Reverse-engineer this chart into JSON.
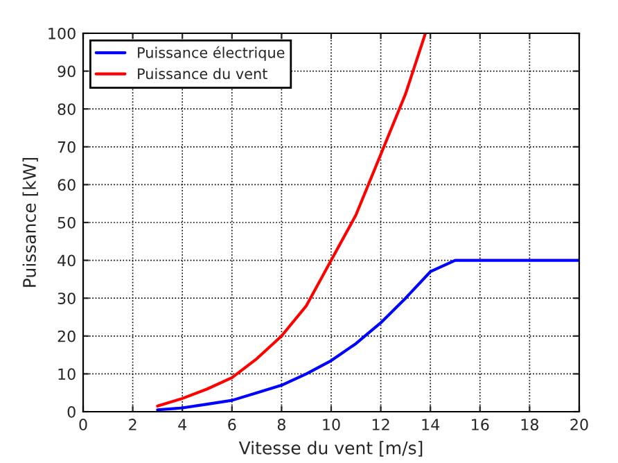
{
  "chart_data": {
    "type": "line",
    "xlabel": "Vitesse du vent [m/s]",
    "ylabel": "Puissance [kW]",
    "xlim": [
      0,
      20
    ],
    "xticks": [
      0,
      2,
      4,
      6,
      8,
      10,
      12,
      14,
      16,
      18,
      20
    ],
    "ylim": [
      0,
      100
    ],
    "yticks": [
      0,
      10,
      20,
      30,
      40,
      50,
      60,
      70,
      80,
      90,
      100
    ],
    "grid": true,
    "legend": "top left",
    "line_style": "solid",
    "series": [
      {
        "name": "Puissance électrique",
        "color": "#0000ff",
        "x": [
          3,
          4,
          5,
          6,
          7,
          8,
          9,
          10,
          11,
          12,
          13,
          14,
          15,
          20
        ],
        "values": [
          0.5,
          1,
          2,
          3,
          5,
          7,
          10,
          13.5,
          18,
          23.5,
          30,
          37,
          40,
          40
        ]
      },
      {
        "name": "Puissance du vent",
        "color": "#ff0000",
        "x": [
          3,
          4,
          5,
          6,
          7,
          8,
          9,
          10,
          11,
          12,
          13,
          13.8
        ],
        "values": [
          1.5,
          3.5,
          6,
          9,
          14,
          20,
          28,
          40,
          52,
          68,
          84,
          100
        ]
      }
    ]
  }
}
